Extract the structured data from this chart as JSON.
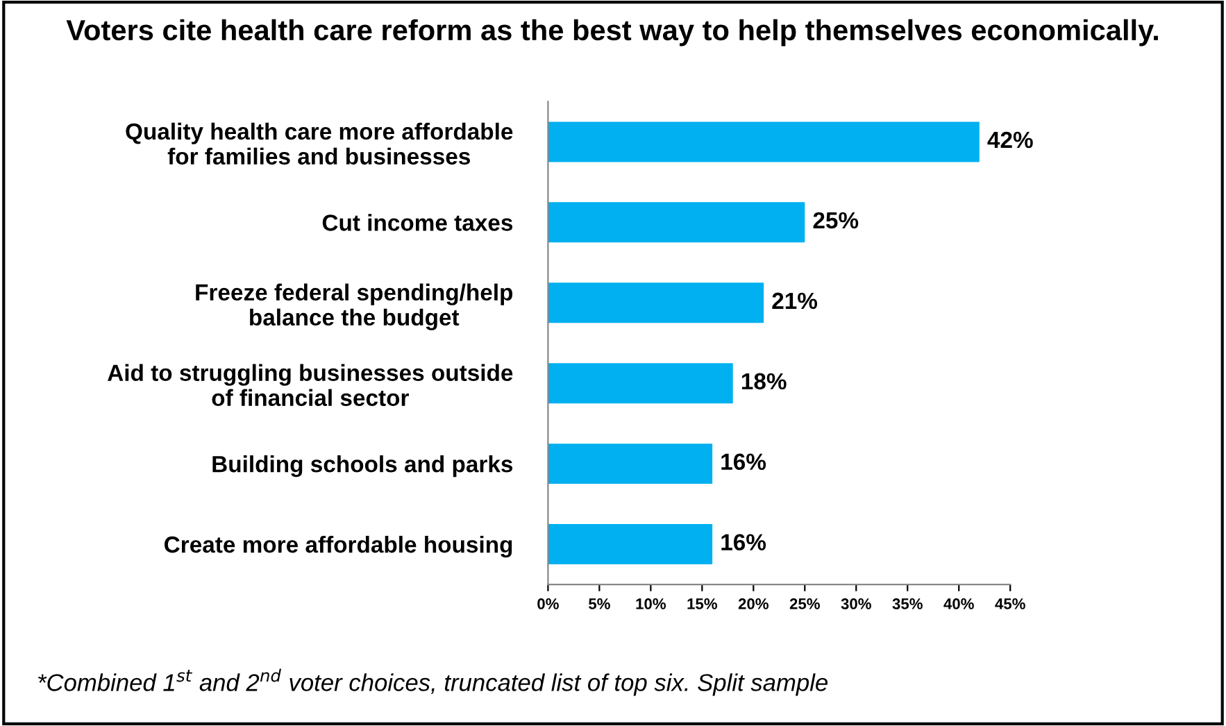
{
  "chart_data": {
    "type": "bar",
    "orientation": "horizontal",
    "title": "Voters cite health care reform as the best way to help themselves economically.",
    "categories": [
      "Quality health care more affordable\nfor families and businesses",
      "Cut income taxes",
      "Freeze federal spending/help\nbalance the budget",
      "Aid to struggling businesses outside\nof financial sector",
      "Building schools and parks",
      "Create more affordable housing"
    ],
    "values": [
      42,
      25,
      21,
      18,
      16,
      16
    ],
    "color": "#00b0f0",
    "value_labels": [
      "42%",
      "25%",
      "21%",
      "18%",
      "16%",
      "16%"
    ],
    "xlim": [
      0,
      45
    ],
    "xticks": [
      {
        "value": 0,
        "label": "0%"
      },
      {
        "value": 5,
        "label": "5%"
      },
      {
        "value": 10,
        "label": "10%"
      },
      {
        "value": 15,
        "label": "15%"
      },
      {
        "value": 20,
        "label": "20%"
      },
      {
        "value": 25,
        "label": "25%"
      },
      {
        "value": 30,
        "label": "30%"
      },
      {
        "value": 35,
        "label": "35%"
      },
      {
        "value": 40,
        "label": "40%"
      },
      {
        "value": 45,
        "label": "45%"
      }
    ],
    "grid": false,
    "annotations": [
      "*Combined 1$^{st}$ and 2$^{nd}$ voter choices, truncated list of top six. Split sample"
    ]
  }
}
